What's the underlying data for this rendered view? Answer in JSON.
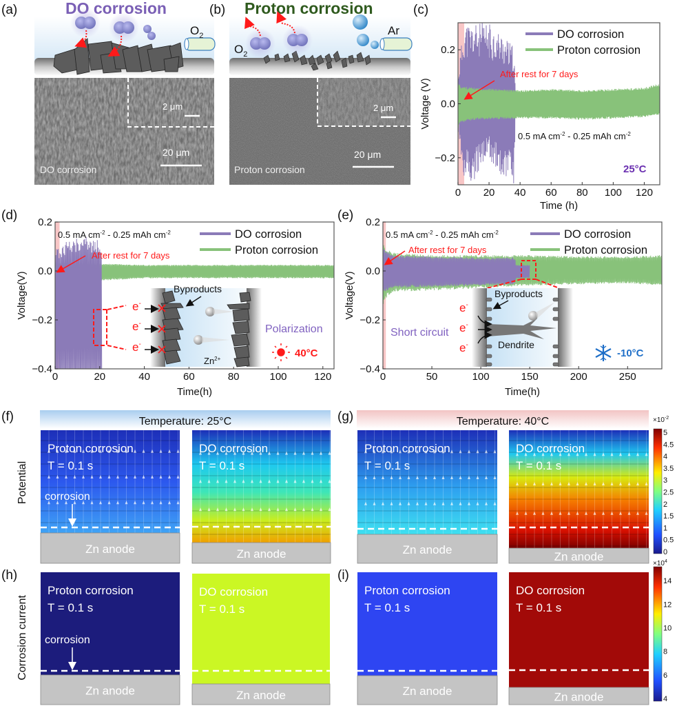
{
  "panel_labels": [
    "(a)",
    "(b)",
    "(c)",
    "(d)",
    "(e)",
    "(f)",
    "(g)",
    "(h)",
    "(i)"
  ],
  "colors": {
    "do": "#8b7bb8",
    "proton": "#88c27a",
    "rest_band": "#f4a0a0",
    "annotation": "#ff1a1a",
    "do_title": "#7a5fb5",
    "proton_title": "#2f5a1e",
    "hot": "#ff1a1a",
    "cold": "#1f6fc8"
  },
  "panel_a": {
    "title": "DO corrosion",
    "gas": "O",
    "gas_sub": "2",
    "inset_scale": "2 μm",
    "scale": "20 μm",
    "caption": "DO corrosion"
  },
  "panel_b": {
    "title": "Proton corrosion",
    "gas_o2": "O",
    "gas_o2_sub": "2",
    "gas_ar": "Ar",
    "inset_scale": "2 μm",
    "scale": "20 μm",
    "caption": "Proton corrosion"
  },
  "chart_data": [
    {
      "panel": "(c)",
      "type": "line",
      "xlabel": "Time (h)",
      "ylabel": "Voltage (V)",
      "xlim": [
        0,
        130
      ],
      "ylim": [
        -0.3,
        0.3
      ],
      "xticks": [
        0,
        20,
        40,
        60,
        80,
        100,
        120
      ],
      "yticks": [
        -0.2,
        0.0,
        0.2
      ],
      "ytick_labels": [
        "−0.2",
        "0.0",
        "0.2"
      ],
      "legend_position": "top-right",
      "rest_band": [
        0,
        4
      ],
      "series": [
        {
          "name": "DO corrosion",
          "color": "#8b7bb8",
          "envelope": {
            "t": [
              0,
              4,
              5,
              10,
              20,
              30,
              36,
              37
            ],
            "upper": [
              0.12,
              0.3,
              0.3,
              0.3,
              0.3,
              0.25,
              0.21,
              0.05
            ],
            "lower": [
              -0.1,
              -0.3,
              -0.3,
              -0.3,
              -0.2,
              -0.3,
              -0.3,
              -0.05
            ]
          }
        },
        {
          "name": "Proton corrosion",
          "color": "#88c27a",
          "envelope": {
            "t": [
              0,
              2,
              10,
              40,
              60,
              80,
              100,
              120,
              130
            ],
            "upper": [
              0.08,
              0.065,
              0.06,
              0.05,
              0.055,
              0.05,
              0.055,
              0.06,
              0.075
            ],
            "lower": [
              -0.09,
              -0.07,
              -0.06,
              -0.055,
              -0.055,
              -0.06,
              -0.055,
              -0.05,
              -0.04
            ]
          }
        }
      ],
      "annotations": {
        "rest": "After rest for 7 days",
        "condition_a": "0.5 mA cm",
        "condition_sup1": "-2",
        "condition_b": " - 0.25 mAh cm",
        "condition_sup2": "-2",
        "temperature": "25°C"
      }
    },
    {
      "panel": "(d)",
      "type": "line",
      "xlabel": "Time(h)",
      "ylabel": "Voltage(V)",
      "xlim": [
        0,
        125
      ],
      "ylim": [
        -0.4,
        0.2
      ],
      "xticks": [
        0,
        20,
        40,
        60,
        80,
        100,
        120
      ],
      "yticks": [
        -0.4,
        -0.2,
        0.0,
        0.2
      ],
      "ytick_labels": [
        "−0.4",
        "−0.2",
        "0.0",
        "0.2"
      ],
      "legend_position": "top-right",
      "rest_band": [
        0,
        2
      ],
      "series": [
        {
          "name": "DO corrosion",
          "color": "#8b7bb8",
          "envelope": {
            "t": [
              0,
              2,
              5,
              10,
              15,
              20,
              21
            ],
            "upper": [
              0.09,
              0.09,
              0.12,
              0.14,
              0.14,
              0.13,
              0.04
            ],
            "lower": [
              -0.4,
              -0.4,
              -0.4,
              -0.4,
              -0.4,
              -0.4,
              -0.4
            ]
          }
        },
        {
          "name": "Proton corrosion",
          "color": "#88c27a",
          "envelope": {
            "t": [
              0,
              10,
              20,
              40,
              60,
              80,
              100,
              125
            ],
            "upper": [
              0.035,
              0.035,
              0.03,
              0.025,
              0.025,
              0.025,
              0.025,
              0.025
            ],
            "lower": [
              -0.04,
              -0.04,
              -0.04,
              -0.03,
              -0.03,
              -0.03,
              -0.03,
              -0.03
            ]
          }
        }
      ],
      "annotations": {
        "rest": "After rest for 7 days",
        "condition_a": "0.5 mA cm",
        "condition_sup1": "-2",
        "condition_b": " - 0.25 mAh cm",
        "condition_sup2": "-2",
        "state": "Polarization",
        "temperature": "40°C",
        "byproducts": "Byproducts",
        "electron": "e",
        "electron_sup": "-",
        "ion": "Zn",
        "ion_sup": "2+"
      }
    },
    {
      "panel": "(e)",
      "type": "line",
      "xlabel": "Time(h)",
      "ylabel": "Voltage(V)",
      "xlim": [
        0,
        285
      ],
      "ylim": [
        -0.4,
        0.2
      ],
      "xticks": [
        0,
        50,
        100,
        150,
        200,
        250
      ],
      "yticks": [
        -0.4,
        -0.2,
        0.0,
        0.2
      ],
      "ytick_labels": [
        "−0.4",
        "−0.2",
        "0.0",
        "0.2"
      ],
      "legend_position": "top-right",
      "rest_band": [
        0,
        3
      ],
      "series": [
        {
          "name": "Proton corrosion",
          "color": "#88c27a",
          "envelope": {
            "t": [
              0,
              1,
              10,
              50,
              100,
              150,
              200,
              250,
              285
            ],
            "upper": [
              0.13,
              0.1,
              0.075,
              0.065,
              0.065,
              0.065,
              0.06,
              0.06,
              0.065
            ],
            "lower": [
              -0.16,
              -0.12,
              -0.085,
              -0.08,
              -0.07,
              -0.06,
              -0.055,
              -0.05,
              -0.06
            ]
          }
        },
        {
          "name": "DO corrosion",
          "color": "#8b7bb8",
          "envelope": {
            "t": [
              0,
              1,
              10,
              50,
              100,
              135,
              136,
              150
            ],
            "upper": [
              0.1,
              0.09,
              0.065,
              0.06,
              0.055,
              0.055,
              0.025,
              0.025
            ],
            "lower": [
              -0.1,
              -0.09,
              -0.07,
              -0.065,
              -0.06,
              -0.055,
              -0.03,
              -0.03
            ]
          }
        }
      ],
      "annotations": {
        "rest": "After rest for 7 days",
        "condition_a": "0.5 mA cm",
        "condition_sup1": "-2",
        "condition_b": " - 0.25 mAh cm",
        "condition_sup2": "-2",
        "state": "Short circuit",
        "temperature": "-10°C",
        "byproducts": "Byproducts",
        "dendrite": "Dendrite",
        "electron": "e",
        "electron_sup": "-"
      }
    }
  ],
  "simulation": {
    "row_potential": "Potential",
    "row_current": "Corrosion current",
    "temp_25": "Temperature: 25°C",
    "temp_40": "Temperature: 40°C",
    "proton": "Proton corrosion",
    "do": "DO corrosion",
    "time": "T = 0.1 s",
    "corrosion": "corrosion",
    "anode": "Zn anode",
    "potential_colorbar": {
      "exponent": "×10",
      "exponent_sup": "-2",
      "min": 0,
      "max": 5,
      "labels": [
        "0",
        "0.5",
        "1",
        "1.5",
        "2",
        "2.5",
        "3",
        "3.5",
        "4",
        "4.5",
        "5"
      ]
    },
    "current_colorbar": {
      "exponent": "×10",
      "exponent_sup": "4",
      "min": 4,
      "max": 15,
      "labels": [
        "4",
        "6",
        "8",
        "10",
        "12",
        "14"
      ]
    },
    "fill_colors": {
      "h_proton": "#1c1c7c",
      "h_do": "#cbf724",
      "i_proton": "#2e45f2",
      "i_do": "#a20a08"
    }
  }
}
